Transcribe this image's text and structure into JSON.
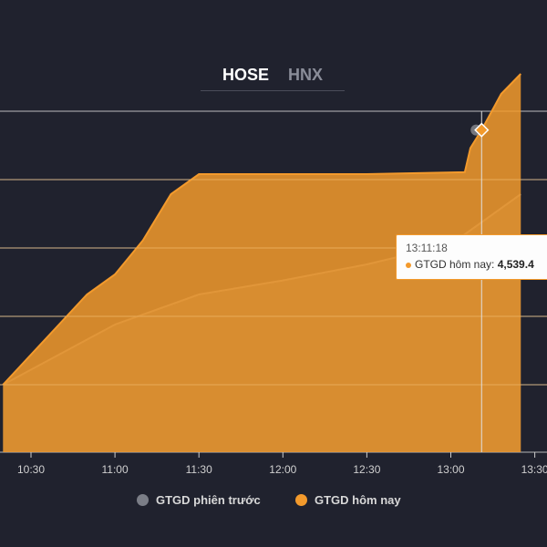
{
  "tabs": [
    {
      "label": "HOSE",
      "active": true
    },
    {
      "label": "HNX",
      "active": false
    }
  ],
  "tooltip": {
    "time": "13:11:18",
    "series": "GTGD hôm nay:",
    "value": "4,539.4"
  },
  "legend": {
    "previous": {
      "label": "GTGD phiên trước",
      "color": "#7b7e87"
    },
    "today": {
      "label": "GTGD hôm nay",
      "color": "#f39a2c"
    }
  },
  "chart_data": {
    "type": "area",
    "title": "",
    "xlabel": "",
    "ylabel": "",
    "x_ticks": [
      "10:30",
      "11:00",
      "11:30",
      "12:00",
      "12:30",
      "13:00",
      "13:30"
    ],
    "grid": true,
    "legend_position": "bottom",
    "series": [
      {
        "name": "GTGD hôm nay",
        "color": "#f39a2c",
        "points": [
          [
            "10:20",
            0
          ],
          [
            "10:40",
            0.3
          ],
          [
            "10:50",
            0.45
          ],
          [
            "11:00",
            0.55
          ],
          [
            "11:10",
            0.72
          ],
          [
            "11:20",
            0.95
          ],
          [
            "11:30",
            1.05
          ],
          [
            "12:00",
            1.05
          ],
          [
            "12:30",
            1.05
          ],
          [
            "13:05",
            1.06
          ],
          [
            "13:07",
            1.18
          ],
          [
            "13:11",
            1.27
          ],
          [
            "13:18",
            1.45
          ],
          [
            "13:25",
            1.55
          ]
        ]
      },
      {
        "name": "GTGD phiên trước",
        "color": "#7b7e87",
        "points": [
          [
            "10:20",
            0
          ],
          [
            "10:40",
            0.15
          ],
          [
            "11:00",
            0.3
          ],
          [
            "11:30",
            0.45
          ],
          [
            "12:00",
            0.52
          ],
          [
            "12:30",
            0.6
          ],
          [
            "13:00",
            0.7
          ],
          [
            "13:25",
            0.95
          ]
        ]
      }
    ]
  }
}
